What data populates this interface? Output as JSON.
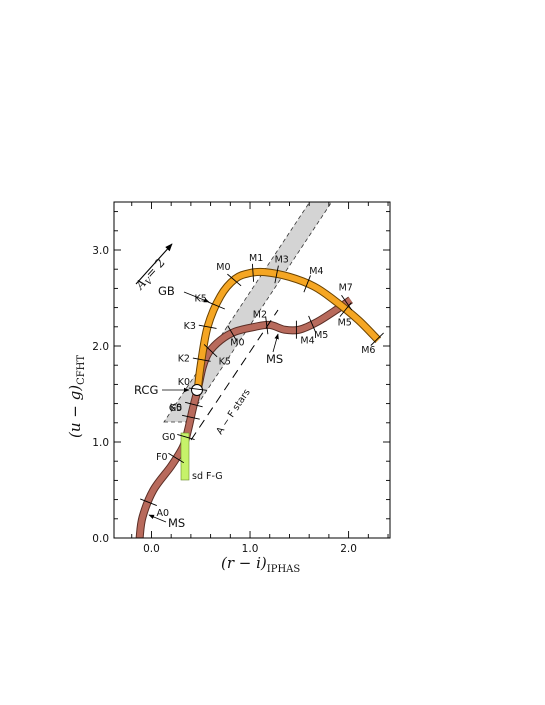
{
  "colors": {
    "giant_branch": "#f5a623",
    "main_sequence": "#b86a5c",
    "sd_box": "#c6f26a",
    "band_fill": "#d4d4d4"
  },
  "chart_data": {
    "type": "line",
    "xlabel_main": "(r − i)",
    "xlabel_sub": "IPHAS",
    "ylabel_main": "(u − g)",
    "ylabel_sub": "CFHT",
    "xlim": [
      -0.38,
      2.42
    ],
    "ylim": [
      0.0,
      3.5
    ],
    "x_ticks": [
      0.0,
      1.0,
      2.0
    ],
    "x_tick_labels": [
      "0.0",
      "1.0",
      "2.0"
    ],
    "y_ticks": [
      0.0,
      1.0,
      2.0,
      3.0
    ],
    "y_tick_labels": [
      "0.0",
      "1.0",
      "2.0",
      "3.0"
    ],
    "grid": false,
    "series": [
      {
        "name": "MS",
        "points": [
          [
            -0.12,
            0.0
          ],
          [
            -0.09,
            0.22
          ],
          [
            0.02,
            0.5
          ],
          [
            0.2,
            0.75
          ],
          [
            0.32,
            0.95
          ],
          [
            0.37,
            1.12
          ],
          [
            0.42,
            1.35
          ],
          [
            0.47,
            1.55
          ],
          [
            0.52,
            1.78
          ],
          [
            0.58,
            1.93
          ],
          [
            0.7,
            2.06
          ],
          [
            0.85,
            2.15
          ],
          [
            1.05,
            2.2
          ],
          [
            1.2,
            2.22
          ],
          [
            1.35,
            2.17
          ],
          [
            1.5,
            2.17
          ],
          [
            1.68,
            2.25
          ],
          [
            1.88,
            2.38
          ],
          [
            2.02,
            2.48
          ]
        ],
        "labels": [
          {
            "text": "A0",
            "x": -0.03
          },
          {
            "text": "F0",
            "x": 0.25
          },
          {
            "text": "G0",
            "x": 0.35
          },
          {
            "text": "G5",
            "x": 0.4
          },
          {
            "text": "K0",
            "x": 0.43
          },
          {
            "text": "K5",
            "x": 0.6
          },
          {
            "text": "M0",
            "x": 0.82
          },
          {
            "text": "M2",
            "x": 1.17
          },
          {
            "text": "M4",
            "x": 1.47
          },
          {
            "text": "M5",
            "x": 1.63
          },
          {
            "text": "M7",
            "x": 1.98
          }
        ]
      },
      {
        "name": "GB",
        "points": [
          [
            0.47,
            1.55
          ],
          [
            0.5,
            1.8
          ],
          [
            0.57,
            2.2
          ],
          [
            0.7,
            2.52
          ],
          [
            0.85,
            2.7
          ],
          [
            1.0,
            2.76
          ],
          [
            1.15,
            2.77
          ],
          [
            1.4,
            2.72
          ],
          [
            1.65,
            2.62
          ],
          [
            1.85,
            2.48
          ],
          [
            2.1,
            2.27
          ],
          [
            2.3,
            2.06
          ]
        ],
        "labels": [
          {
            "text": "K0",
            "x": 0.47
          },
          {
            "text": "K2",
            "x": 0.51
          },
          {
            "text": "K3",
            "x": 0.57
          },
          {
            "text": "K5",
            "x": 0.66
          },
          {
            "text": "M0",
            "x": 0.84
          },
          {
            "text": "M1",
            "x": 1.03
          },
          {
            "text": "M3",
            "x": 1.27
          },
          {
            "text": "M4",
            "x": 1.58
          },
          {
            "text": "M5",
            "x": 1.97
          },
          {
            "text": "M6",
            "x": 2.29
          }
        ]
      }
    ],
    "annotations": [
      "GB",
      "MS",
      "MS",
      "RCG",
      "sd F-G",
      "A − F stars"
    ],
    "reddening_vector": {
      "label": "A",
      "label_sub": "V",
      "label_value": "= 2"
    }
  }
}
